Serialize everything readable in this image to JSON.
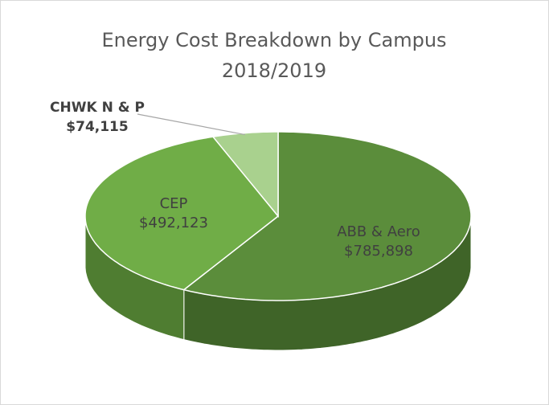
{
  "chart_data": {
    "type": "pie",
    "title": "Energy Cost Breakdown by Campus 2018/2019",
    "categories": [
      "ABB & Aero",
      "CEP",
      "CHWK N & P"
    ],
    "values": [
      785898,
      492123,
      74115
    ],
    "value_labels": [
      "$785,898",
      "$492,123",
      "$74,115"
    ],
    "colors": [
      "#5b8d3b",
      "#70ad47",
      "#a9d18e"
    ],
    "side_colors": [
      "#3f6428",
      "#4f7d31",
      "#7a9c63"
    ]
  }
}
